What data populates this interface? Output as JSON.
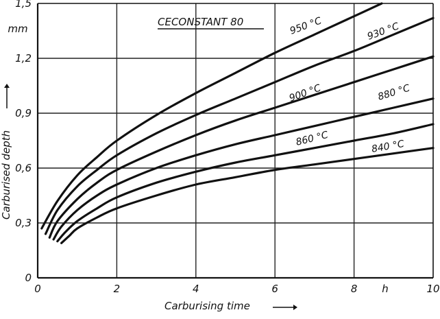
{
  "chart_data": {
    "type": "line",
    "title": "CECONSTANT 80",
    "xlabel": "Carburising time",
    "ylabel": "Carburised depth",
    "x_unit": "h",
    "y_unit": "mm",
    "xlim": [
      0,
      10
    ],
    "ylim": [
      0,
      1.5
    ],
    "x_ticks": [
      0,
      2,
      4,
      6,
      8,
      10
    ],
    "x_tick_labels": [
      "0",
      "2",
      "4",
      "6",
      "8",
      "10"
    ],
    "y_ticks": [
      0,
      0.3,
      0.6,
      0.9,
      1.2,
      1.5
    ],
    "y_tick_labels": [
      "0",
      "0,3",
      "0,6",
      "0,9",
      "1,2",
      "1,5"
    ],
    "grid": true,
    "series": [
      {
        "name": "950 °C",
        "x": [
          0.1,
          0.5,
          1,
          1.5,
          2,
          3,
          4,
          5,
          6,
          7,
          8,
          8.7
        ],
        "y": [
          0.27,
          0.42,
          0.56,
          0.66,
          0.75,
          0.89,
          1.01,
          1.12,
          1.23,
          1.33,
          1.43,
          1.5
        ]
      },
      {
        "name": "930 °C",
        "x": [
          0.2,
          0.5,
          1,
          1.5,
          2,
          3,
          4,
          5,
          6,
          7,
          8,
          9,
          10
        ],
        "y": [
          0.24,
          0.37,
          0.5,
          0.59,
          0.67,
          0.79,
          0.89,
          0.98,
          1.07,
          1.16,
          1.24,
          1.33,
          1.42
        ]
      },
      {
        "name": "900 °C",
        "x": [
          0.3,
          0.5,
          1,
          1.5,
          2,
          3,
          4,
          5,
          6,
          7,
          8,
          9,
          10
        ],
        "y": [
          0.22,
          0.31,
          0.43,
          0.52,
          0.59,
          0.69,
          0.78,
          0.86,
          0.93,
          1.0,
          1.07,
          1.14,
          1.21
        ]
      },
      {
        "name": "880 °C",
        "x": [
          0.4,
          0.6,
          1,
          1.5,
          2,
          3,
          4,
          5,
          6,
          7,
          8,
          9,
          10
        ],
        "y": [
          0.21,
          0.28,
          0.37,
          0.45,
          0.51,
          0.6,
          0.67,
          0.73,
          0.78,
          0.83,
          0.88,
          0.93,
          0.98
        ]
      },
      {
        "name": "860 °C",
        "x": [
          0.5,
          0.7,
          1,
          1.5,
          2,
          3,
          4,
          5,
          6,
          7,
          8,
          9,
          10
        ],
        "y": [
          0.2,
          0.25,
          0.31,
          0.38,
          0.44,
          0.52,
          0.58,
          0.63,
          0.67,
          0.71,
          0.75,
          0.79,
          0.84
        ]
      },
      {
        "name": "840 °C",
        "x": [
          0.6,
          0.8,
          1,
          1.5,
          2,
          3,
          4,
          5,
          6,
          7,
          8,
          9,
          10
        ],
        "y": [
          0.19,
          0.23,
          0.27,
          0.33,
          0.38,
          0.45,
          0.51,
          0.55,
          0.59,
          0.62,
          0.65,
          0.68,
          0.71
        ]
      }
    ]
  }
}
